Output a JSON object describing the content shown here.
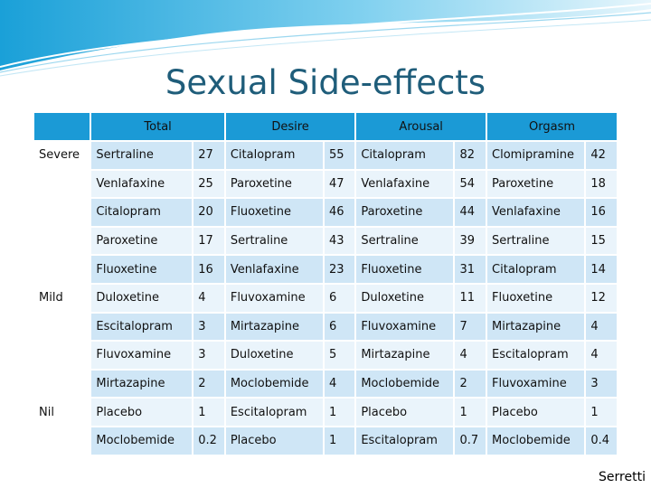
{
  "title": "Sexual Side-effects",
  "credit": "Serretti",
  "headers": [
    "Total",
    "Desire",
    "Arousal",
    "Orgasm"
  ],
  "rows": [
    {
      "category": "Severe",
      "cells": [
        [
          "Sertraline",
          "27"
        ],
        [
          "Citalopram",
          "55"
        ],
        [
          "Citalopram",
          "82"
        ],
        [
          "Clomipramine",
          "42"
        ]
      ]
    },
    {
      "category": "",
      "cells": [
        [
          "Venlafaxine",
          "25"
        ],
        [
          "Paroxetine",
          "47"
        ],
        [
          "Venlafaxine",
          "54"
        ],
        [
          "Paroxetine",
          "18"
        ]
      ]
    },
    {
      "category": "",
      "cells": [
        [
          "Citalopram",
          "20"
        ],
        [
          "Fluoxetine",
          "46"
        ],
        [
          "Paroxetine",
          "44"
        ],
        [
          "Venlafaxine",
          "16"
        ]
      ]
    },
    {
      "category": "",
      "cells": [
        [
          "Paroxetine",
          "17"
        ],
        [
          "Sertraline",
          "43"
        ],
        [
          "Sertraline",
          "39"
        ],
        [
          "Sertraline",
          "15"
        ]
      ]
    },
    {
      "category": "",
      "cells": [
        [
          "Fluoxetine",
          "16"
        ],
        [
          "Venlafaxine",
          "23"
        ],
        [
          "Fluoxetine",
          "31"
        ],
        [
          "Citalopram",
          "14"
        ]
      ]
    },
    {
      "category": "Mild",
      "cells": [
        [
          "Duloxetine",
          "4"
        ],
        [
          "Fluvoxamine",
          "6"
        ],
        [
          "Duloxetine",
          "11"
        ],
        [
          "Fluoxetine",
          "12"
        ]
      ]
    },
    {
      "category": "",
      "cells": [
        [
          "Escitalopram",
          "3"
        ],
        [
          "Mirtazapine",
          "6"
        ],
        [
          "Fluvoxamine",
          "7"
        ],
        [
          "Mirtazapine",
          "4"
        ]
      ]
    },
    {
      "category": "",
      "cells": [
        [
          "Fluvoxamine",
          "3"
        ],
        [
          "Duloxetine",
          "5"
        ],
        [
          "Mirtazapine",
          "4"
        ],
        [
          "Escitalopram",
          "4"
        ]
      ]
    },
    {
      "category": "",
      "cells": [
        [
          "Mirtazapine",
          "2"
        ],
        [
          "Moclobemide",
          "4"
        ],
        [
          "Moclobemide",
          "2"
        ],
        [
          "Fluvoxamine",
          "3"
        ]
      ]
    },
    {
      "category": "Nil",
      "cells": [
        [
          "Placebo",
          "1"
        ],
        [
          "Escitalopram",
          "1"
        ],
        [
          "Placebo",
          "1"
        ],
        [
          "Placebo",
          "1"
        ]
      ]
    },
    {
      "category": "",
      "cells": [
        [
          "Moclobemide",
          "0.2"
        ],
        [
          "Placebo",
          "1"
        ],
        [
          "Escitalopram",
          "0.7"
        ],
        [
          "Moclobemide",
          "0.4"
        ]
      ]
    }
  ]
}
